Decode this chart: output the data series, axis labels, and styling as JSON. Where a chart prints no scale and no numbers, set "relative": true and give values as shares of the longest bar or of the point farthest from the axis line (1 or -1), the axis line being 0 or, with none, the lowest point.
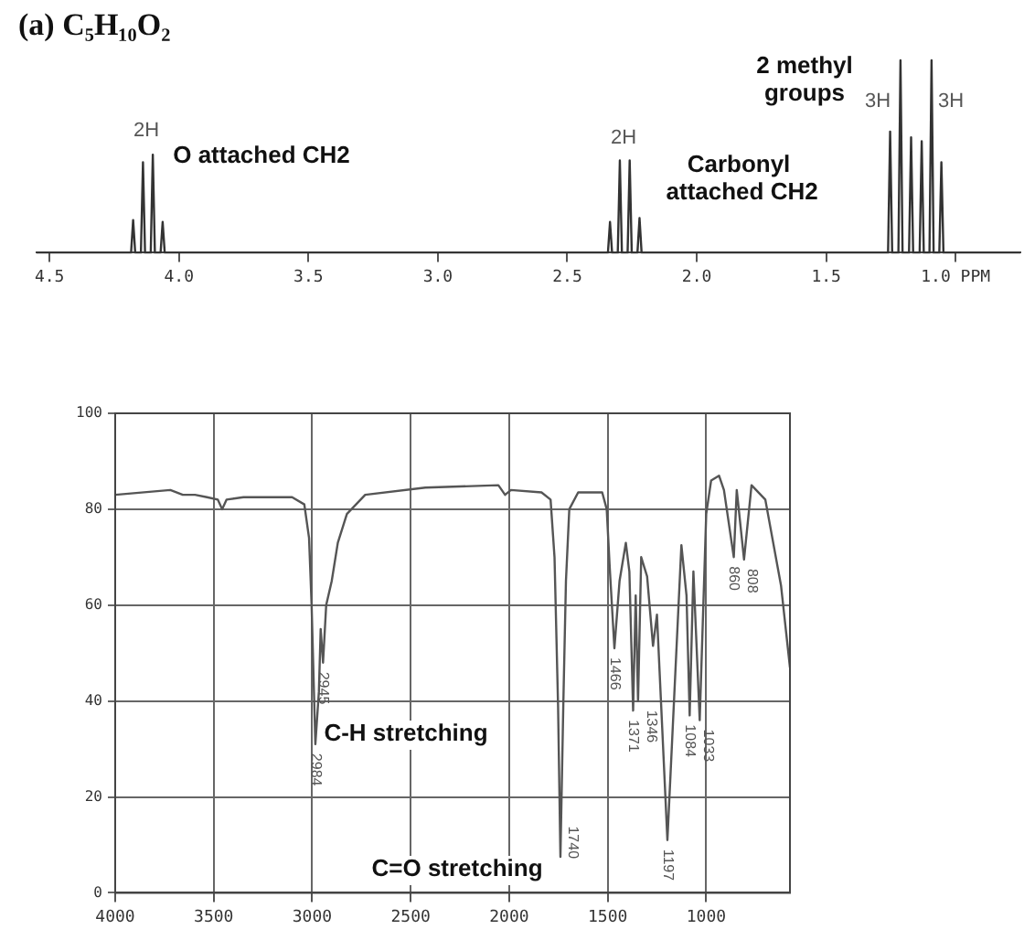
{
  "chart_data": [
    {
      "type": "line",
      "title": "(a) C₅H₁₀O₂",
      "relative": true,
      "tick_labels": "x",
      "grid": false,
      "legend": false,
      "marker": "none",
      "xlim": [
        4.55,
        0.75
      ],
      "xticks": [
        {
          "value": 4.5,
          "label": "4.5"
        },
        {
          "value": 4,
          "label": "4.0"
        },
        {
          "value": 3.5,
          "label": "3.5"
        },
        {
          "value": 3,
          "label": "3.0"
        },
        {
          "value": 2.5,
          "label": "2.5"
        },
        {
          "value": 2,
          "label": "2.0"
        },
        {
          "value": 1.5,
          "label": "1.5"
        },
        {
          "value": 1,
          "label": "1.0 PPM"
        }
      ],
      "x": [
        4.55,
        4.185,
        4.177,
        4.169,
        4.147,
        4.139,
        4.131,
        4.109,
        4.101,
        4.093,
        4.071,
        4.063,
        4.055,
        2.343,
        2.335,
        2.327,
        2.305,
        2.297,
        2.289,
        2.267,
        2.259,
        2.251,
        2.229,
        2.221,
        2.213,
        1.261,
        1.253,
        1.245,
        1.221,
        1.213,
        1.205,
        1.18,
        1.172,
        1.164,
        1.139,
        1.131,
        1.123,
        1.101,
        1.093,
        1.085,
        1.063,
        1.055,
        1.047,
        0.75
      ],
      "series": [
        {
          "color": "#333333",
          "values": [
            0,
            0,
            0.17,
            0,
            0,
            0.47,
            0,
            0,
            0.51,
            0,
            0,
            0.16,
            0,
            0,
            0.16,
            0,
            0,
            0.48,
            0,
            0,
            0.48,
            0,
            0,
            0.18,
            0,
            0,
            0.63,
            0,
            0,
            1,
            0,
            0,
            0.6,
            0,
            0,
            0.58,
            0,
            0,
            1,
            0,
            0,
            0.47,
            0,
            0
          ]
        }
      ],
      "annotations": [
        "2H",
        "O attached CH2",
        "2H",
        "Carbonyl\n attached CH2",
        "2 methyl\ngroups",
        "3H",
        "3H"
      ]
    },
    {
      "type": "line",
      "grid": true,
      "legend": false,
      "marker": "none",
      "xlim": [
        4000,
        575
      ],
      "xticks": [
        4000,
        3500,
        3000,
        2500,
        2000,
        1500,
        1000
      ],
      "ylim": [
        0,
        100
      ],
      "yticks": [
        0,
        20,
        40,
        60,
        80,
        100
      ],
      "x": [
        4000,
        3720,
        3657,
        3595,
        3534,
        3479,
        3457,
        3435,
        3349,
        3102,
        3040,
        3016,
        3003,
        2984,
        2966,
        2957,
        2945,
        2929,
        2901,
        2870,
        2824,
        2731,
        2426,
        2055,
        2021,
        1991,
        1836,
        1790,
        1770,
        1752,
        1740,
        1725,
        1712,
        1695,
        1650,
        1528,
        1505,
        1490,
        1466,
        1440,
        1408,
        1390,
        1371,
        1358,
        1346,
        1330,
        1300,
        1270,
        1250,
        1197,
        1126,
        1100,
        1084,
        1065,
        1033,
        1000,
        975,
        935,
        910,
        860,
        845,
        808,
        770,
        700,
        620,
        575
      ],
      "series": [
        {
          "color": "#555555",
          "values": [
            83,
            84,
            83,
            83,
            82.5,
            82,
            80,
            82,
            82.5,
            82.5,
            81,
            74,
            60,
            31,
            42,
            55,
            48,
            60,
            65,
            73,
            79,
            83,
            84.5,
            85,
            83,
            84,
            83.5,
            82,
            70,
            39,
            7.5,
            40,
            65,
            80,
            83.5,
            83.5,
            80,
            68,
            51,
            65,
            73,
            67,
            38,
            62,
            40,
            70,
            66,
            51.5,
            58,
            11,
            72.5,
            62,
            37,
            67,
            36,
            79,
            86,
            87,
            84,
            70,
            84,
            69.5,
            85,
            82,
            64,
            47
          ]
        }
      ],
      "annotations": [
        {
          "text": "2945",
          "x": 2945,
          "y": 48
        },
        {
          "text": "2984",
          "x": 2984,
          "y": 31
        },
        "C-H stretching",
        {
          "text": "1740",
          "x": 1740,
          "y": 7.5
        },
        "C=O stretching",
        {
          "text": "1466",
          "x": 1466,
          "y": 51
        },
        {
          "text": "1371",
          "x": 1371,
          "y": 38
        },
        {
          "text": "1346",
          "x": 1346,
          "y": 40
        },
        {
          "text": "1197",
          "x": 1197,
          "y": 11
        },
        {
          "text": "1084",
          "x": 1084,
          "y": 37
        },
        {
          "text": "1033",
          "x": 1033,
          "y": 36
        },
        {
          "text": "860",
          "x": 860,
          "y": 70
        },
        {
          "text": "808",
          "x": 808,
          "y": 69.5
        }
      ]
    }
  ]
}
